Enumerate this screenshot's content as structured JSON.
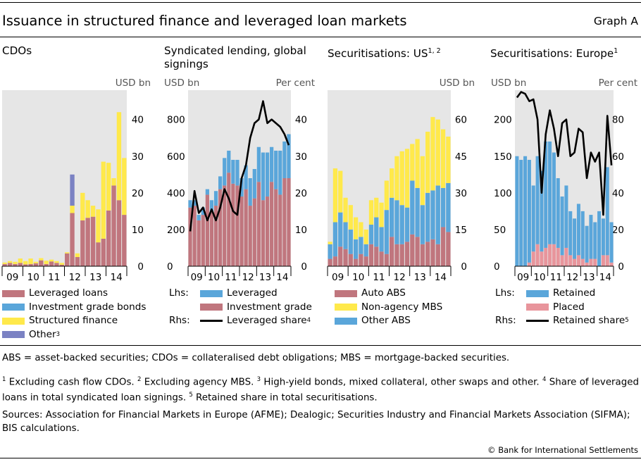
{
  "header": {
    "title": "Issuance in structured finance and leveraged loan markets",
    "graph_label": "Graph A"
  },
  "colors": {
    "background": "#e6e6e6",
    "leveraged_loans": "#c0767e",
    "investment_grade_bonds": "#5aa6da",
    "structured_finance": "#ffe94b",
    "other": "#7b82c3",
    "line": "#000000"
  },
  "panels": [
    {
      "title": "CDOs",
      "title_sup": "",
      "left_unit": "",
      "right_unit": "USD bn",
      "legend": [
        {
          "label": "Leveraged loans",
          "sup": "",
          "color": "#c0767e",
          "kind": "box"
        },
        {
          "label": "Investment grade bonds",
          "sup": "",
          "color": "#5aa6da",
          "kind": "box"
        },
        {
          "label": "Structured finance",
          "sup": "",
          "color": "#ffe94b",
          "kind": "box"
        },
        {
          "label": "Other",
          "sup": "3",
          "color": "#7b82c3",
          "kind": "box"
        }
      ]
    },
    {
      "title": "Syndicated lending, global signings",
      "title_sup": "",
      "left_unit": "USD bn",
      "right_unit": "Per cent",
      "legend": [
        {
          "prefix": "Lhs:",
          "label": "Leveraged",
          "sup": "",
          "color": "#5aa6da",
          "kind": "box"
        },
        {
          "prefix": "",
          "label": "Investment grade",
          "sup": "",
          "color": "#c0767e",
          "kind": "box"
        },
        {
          "prefix": "Rhs:",
          "label": "Leveraged share",
          "sup": "4",
          "color": "#000000",
          "kind": "line"
        }
      ]
    },
    {
      "title": "Securitisations: US",
      "title_sup": "1, 2",
      "left_unit": "",
      "right_unit": "USD bn",
      "legend": [
        {
          "label": "Auto ABS",
          "sup": "",
          "color": "#c0767e",
          "kind": "box"
        },
        {
          "label": "Non-agency MBS",
          "sup": "",
          "color": "#ffe94b",
          "kind": "box"
        },
        {
          "label": "Other ABS",
          "sup": "",
          "color": "#5aa6da",
          "kind": "box"
        }
      ]
    },
    {
      "title": "Securitisations: Europe",
      "title_sup": "1",
      "left_unit": "USD bn",
      "right_unit": "Per cent",
      "legend": [
        {
          "prefix": "Lhs:",
          "label": "Retained",
          "sup": "",
          "color": "#5aa6da",
          "kind": "box"
        },
        {
          "prefix": "",
          "label": "Placed",
          "sup": "",
          "color": "#e8959c",
          "kind": "box"
        },
        {
          "prefix": "Rhs:",
          "label": "Retained share",
          "sup": "5",
          "color": "#000000",
          "kind": "line"
        }
      ]
    }
  ],
  "notes": {
    "abbreviations": "ABS = asset-backed securities; CDOs = collateralised debt obligations; MBS = mortgage-backed securities.",
    "footnotes": [
      {
        "num": "1",
        "text": "Excluding cash flow CDOs."
      },
      {
        "num": "2",
        "text": "Excluding agency MBS."
      },
      {
        "num": "3",
        "text": "High-yield bonds, mixed collateral, other swaps and other."
      },
      {
        "num": "4",
        "text": "Share of leveraged loans in total syndicated loan signings."
      },
      {
        "num": "5",
        "text": "Retained share in total securitisations."
      }
    ],
    "sources": "Sources: Association for Financial Markets in Europe (AFME); Dealogic; Securities Industry and Financial Markets Association (SIFMA); BIS calculations.",
    "copyright": "© Bank for International Settlements"
  },
  "chart_data": [
    {
      "panel": "CDOs",
      "type": "bar",
      "stacked": true,
      "x_ticks": [
        "09",
        "10",
        "11",
        "12",
        "13",
        "14"
      ],
      "periods": [
        "09Q1",
        "09Q2",
        "09Q3",
        "09Q4",
        "10Q1",
        "10Q2",
        "10Q3",
        "10Q4",
        "11Q1",
        "11Q2",
        "11Q3",
        "11Q4",
        "12Q1",
        "12Q2",
        "12Q3",
        "12Q4",
        "13Q1",
        "13Q2",
        "13Q3",
        "13Q4",
        "14Q1",
        "14Q2",
        "14Q3",
        "14Q4"
      ],
      "y_right": {
        "unit": "USD bn",
        "ticks": [
          0,
          10,
          20,
          30,
          40
        ],
        "range": [
          0,
          48
        ]
      },
      "series": [
        {
          "name": "Leveraged loans",
          "values": [
            0.6,
            0.9,
            0.6,
            0.9,
            0.5,
            0.6,
            0.8,
            1.6,
            0.6,
            1.3,
            0.9,
            0.4,
            3.5,
            14.5,
            2.5,
            12.5,
            13.2,
            13.5,
            6.5,
            7.5,
            15.2,
            22,
            18,
            14
          ]
        },
        {
          "name": "Investment grade bonds",
          "values": [
            0,
            0,
            0,
            0,
            0,
            0,
            0,
            0,
            0,
            0,
            0,
            0,
            0,
            0,
            0,
            0,
            0,
            0,
            0,
            0,
            0,
            0,
            0,
            0
          ]
        },
        {
          "name": "Structured finance",
          "values": [
            0.4,
            0.5,
            0.6,
            1.2,
            0.9,
            1.5,
            0.4,
            0.6,
            0.9,
            0.5,
            0.5,
            0.5,
            0.3,
            2,
            1,
            7.5,
            4.8,
            3,
            9,
            21,
            13,
            2,
            24,
            15.5
          ]
        },
        {
          "name": "Other",
          "values": [
            0,
            0,
            0,
            0,
            0,
            0,
            0,
            0,
            0,
            0,
            0,
            0,
            0,
            8.5,
            0,
            0,
            0,
            0,
            0,
            0,
            0,
            0,
            0,
            0
          ]
        }
      ]
    },
    {
      "panel": "Syndicated lending, global signings",
      "type": "bar+line",
      "stacked": true,
      "x_ticks": [
        "09",
        "10",
        "11",
        "12",
        "13",
        "14"
      ],
      "periods": [
        "09Q1",
        "09Q2",
        "09Q3",
        "09Q4",
        "10Q1",
        "10Q2",
        "10Q3",
        "10Q4",
        "11Q1",
        "11Q2",
        "11Q3",
        "11Q4",
        "12Q1",
        "12Q2",
        "12Q3",
        "12Q4",
        "13Q1",
        "13Q2",
        "13Q3",
        "13Q4",
        "14Q1",
        "14Q2",
        "14Q3",
        "14Q4"
      ],
      "y_left": {
        "unit": "USD bn",
        "ticks": [
          0,
          200,
          400,
          600,
          800
        ],
        "range": [
          0,
          960
        ]
      },
      "y_right": {
        "unit": "Per cent",
        "ticks": [
          0,
          10,
          20,
          30,
          40
        ],
        "range": [
          0,
          48
        ]
      },
      "series": [
        {
          "name": "Investment grade",
          "axis": "left",
          "values": [
            320,
            330,
            250,
            280,
            390,
            300,
            330,
            420,
            440,
            510,
            450,
            440,
            380,
            420,
            330,
            370,
            460,
            360,
            380,
            460,
            420,
            390,
            480,
            480
          ]
        },
        {
          "name": "Leveraged",
          "axis": "left",
          "values": [
            40,
            30,
            30,
            40,
            30,
            60,
            80,
            70,
            150,
            120,
            130,
            140,
            100,
            130,
            150,
            160,
            190,
            260,
            240,
            190,
            210,
            240,
            200,
            240
          ]
        },
        {
          "name": "Leveraged share",
          "axis": "right",
          "type": "line",
          "values": [
            9.5,
            20.5,
            14.5,
            16,
            12.5,
            15.5,
            12.5,
            16,
            21,
            18.5,
            15,
            14,
            24,
            27.5,
            35,
            39,
            40,
            45,
            39,
            40,
            39,
            38,
            36,
            33
          ]
        }
      ]
    },
    {
      "panel": "Securitisations: US",
      "type": "bar",
      "stacked": true,
      "x_ticks": [
        "09",
        "10",
        "11",
        "12",
        "13",
        "14"
      ],
      "periods": [
        "09Q1",
        "09Q2",
        "09Q3",
        "09Q4",
        "10Q1",
        "10Q2",
        "10Q3",
        "10Q4",
        "11Q1",
        "11Q2",
        "11Q3",
        "11Q4",
        "12Q1",
        "12Q2",
        "12Q3",
        "12Q4",
        "13Q1",
        "13Q2",
        "13Q3",
        "13Q4",
        "14Q1",
        "14Q2",
        "14Q3",
        "14Q4"
      ],
      "y_right": {
        "unit": "USD bn",
        "ticks": [
          0,
          15,
          30,
          45,
          60
        ],
        "range": [
          0,
          72
        ]
      },
      "series": [
        {
          "name": "Auto ABS",
          "values": [
            3,
            4,
            8,
            7,
            5,
            3,
            5,
            4,
            9,
            8,
            6,
            5,
            12,
            9,
            9,
            10,
            13,
            12,
            9,
            10,
            11,
            9,
            16,
            14
          ]
        },
        {
          "name": "Other ABS",
          "values": [
            6,
            14,
            14,
            11,
            10,
            8,
            7,
            5,
            8,
            12,
            10,
            18,
            16,
            18,
            16,
            14,
            22,
            20,
            16,
            20,
            20,
            24,
            16,
            20
          ]
        },
        {
          "name": "Non-agency MBS",
          "values": [
            1,
            22,
            17,
            10,
            10,
            9,
            6,
            6,
            10,
            8,
            10,
            12,
            12,
            18,
            22,
            24,
            15,
            20,
            20,
            25,
            30,
            27,
            24,
            19
          ]
        }
      ]
    },
    {
      "panel": "Securitisations: Europe",
      "type": "bar+line",
      "stacked": true,
      "x_ticks": [
        "09",
        "10",
        "11",
        "12",
        "13",
        "14"
      ],
      "periods": [
        "09Q1",
        "09Q2",
        "09Q3",
        "09Q4",
        "10Q1",
        "10Q2",
        "10Q3",
        "10Q4",
        "11Q1",
        "11Q2",
        "11Q3",
        "11Q4",
        "12Q1",
        "12Q2",
        "12Q3",
        "12Q4",
        "13Q1",
        "13Q2",
        "13Q3",
        "13Q4",
        "14Q1",
        "14Q2",
        "14Q3",
        "14Q4"
      ],
      "y_left": {
        "unit": "USD bn",
        "ticks": [
          0,
          50,
          100,
          150,
          200
        ],
        "range": [
          0,
          240
        ]
      },
      "y_right": {
        "unit": "Per cent",
        "ticks": [
          0,
          20,
          40,
          60,
          80
        ],
        "range": [
          0,
          96
        ]
      },
      "series": [
        {
          "name": "Placed",
          "axis": "left",
          "values": [
            0,
            0,
            0,
            5,
            20,
            30,
            20,
            25,
            30,
            30,
            25,
            15,
            25,
            15,
            10,
            15,
            10,
            5,
            10,
            10,
            0,
            15,
            15,
            5
          ]
        },
        {
          "name": "Retained",
          "axis": "left",
          "values": [
            150,
            145,
            150,
            140,
            90,
            120,
            110,
            145,
            140,
            125,
            95,
            80,
            85,
            60,
            55,
            70,
            65,
            50,
            60,
            50,
            75,
            50,
            120,
            55
          ]
        },
        {
          "name": "Retained share",
          "axis": "right",
          "type": "line",
          "values": [
            92,
            95,
            94,
            90,
            91,
            80,
            40,
            72,
            85,
            75,
            60,
            78,
            80,
            60,
            62,
            75,
            73,
            48,
            62,
            57,
            62,
            28,
            82,
            55
          ]
        }
      ]
    }
  ]
}
